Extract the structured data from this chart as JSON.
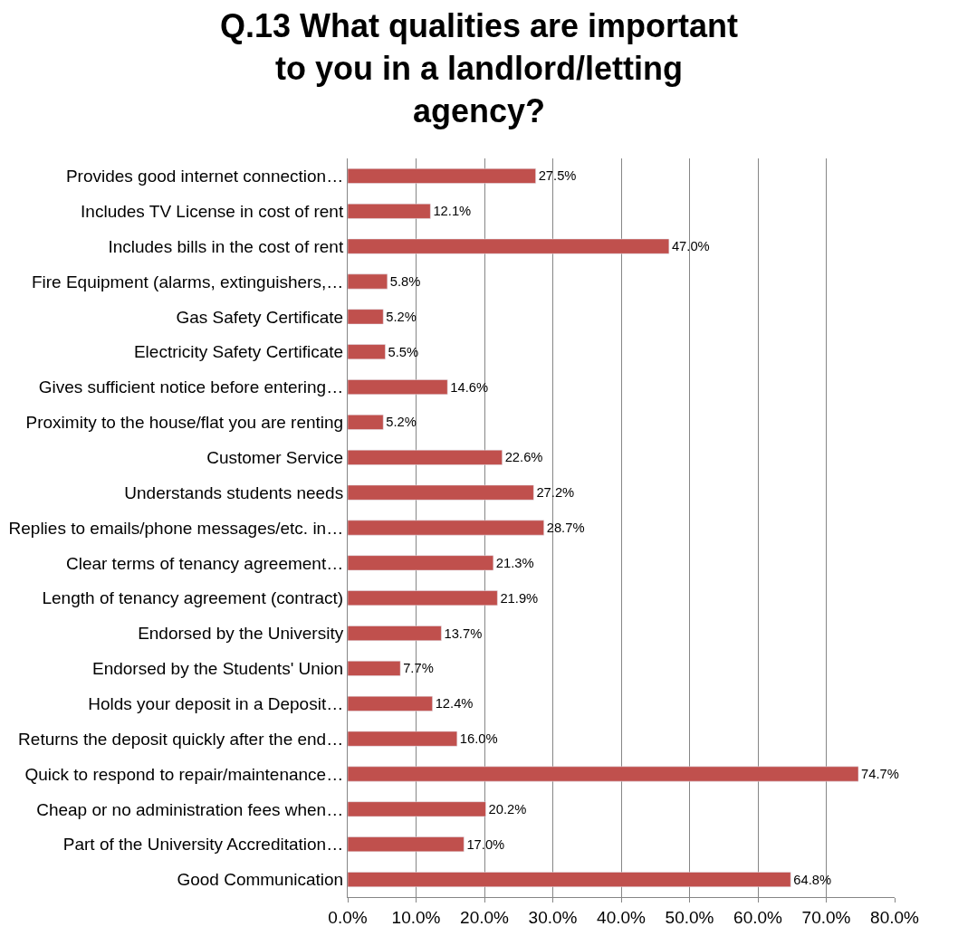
{
  "chart_data": {
    "type": "bar",
    "orientation": "horizontal",
    "title": "Q.13 What qualities are important to you in a landlord/letting agency?",
    "categories": [
      "Provides good internet connection…",
      "Includes TV License in cost of rent",
      "Includes bills in the cost of rent",
      "Fire Equipment (alarms, extinguishers,…",
      "Gas Safety Certificate",
      "Electricity Safety Certificate",
      "Gives sufficient notice before entering…",
      "Proximity to the house/flat you are renting",
      "Customer Service",
      "Understands students needs",
      "Replies to emails/phone messages/etc. in…",
      "Clear terms of tenancy agreement…",
      "Length of tenancy agreement (contract)",
      "Endorsed by the University",
      "Endorsed by the Students' Union",
      "Holds your deposit in a Deposit…",
      "Returns the deposit quickly after the end…",
      "Quick to respond to repair/maintenance…",
      "Cheap or no administration fees when…",
      "Part of the University Accreditation…",
      "Good Communication"
    ],
    "values": [
      27.5,
      12.1,
      47.0,
      5.8,
      5.2,
      5.5,
      14.6,
      5.2,
      22.6,
      27.2,
      28.7,
      21.3,
      21.9,
      13.7,
      7.7,
      12.4,
      16.0,
      74.7,
      20.2,
      17.0,
      64.8
    ],
    "value_labels": [
      "27.5%",
      "12.1%",
      "47.0%",
      "5.8%",
      "5.2%",
      "5.5%",
      "14.6%",
      "5.2%",
      "22.6%",
      "27.2%",
      "28.7%",
      "21.3%",
      "21.9%",
      "13.7%",
      "7.7%",
      "12.4%",
      "16.0%",
      "74.7%",
      "20.2%",
      "17.0%",
      "64.8%"
    ],
    "color": "#c0504d",
    "xlim": [
      0,
      80
    ],
    "xticks": [
      {
        "value": 0,
        "label": "0.0%"
      },
      {
        "value": 10,
        "label": "10.0%"
      },
      {
        "value": 20,
        "label": "20.0%"
      },
      {
        "value": 30,
        "label": "30.0%"
      },
      {
        "value": 40,
        "label": "40.0%"
      },
      {
        "value": 50,
        "label": "50.0%"
      },
      {
        "value": 60,
        "label": "60.0%"
      },
      {
        "value": 70,
        "label": "70.0%"
      },
      {
        "value": 80,
        "label": "80.0%"
      }
    ],
    "grid": "x",
    "legend": false
  }
}
